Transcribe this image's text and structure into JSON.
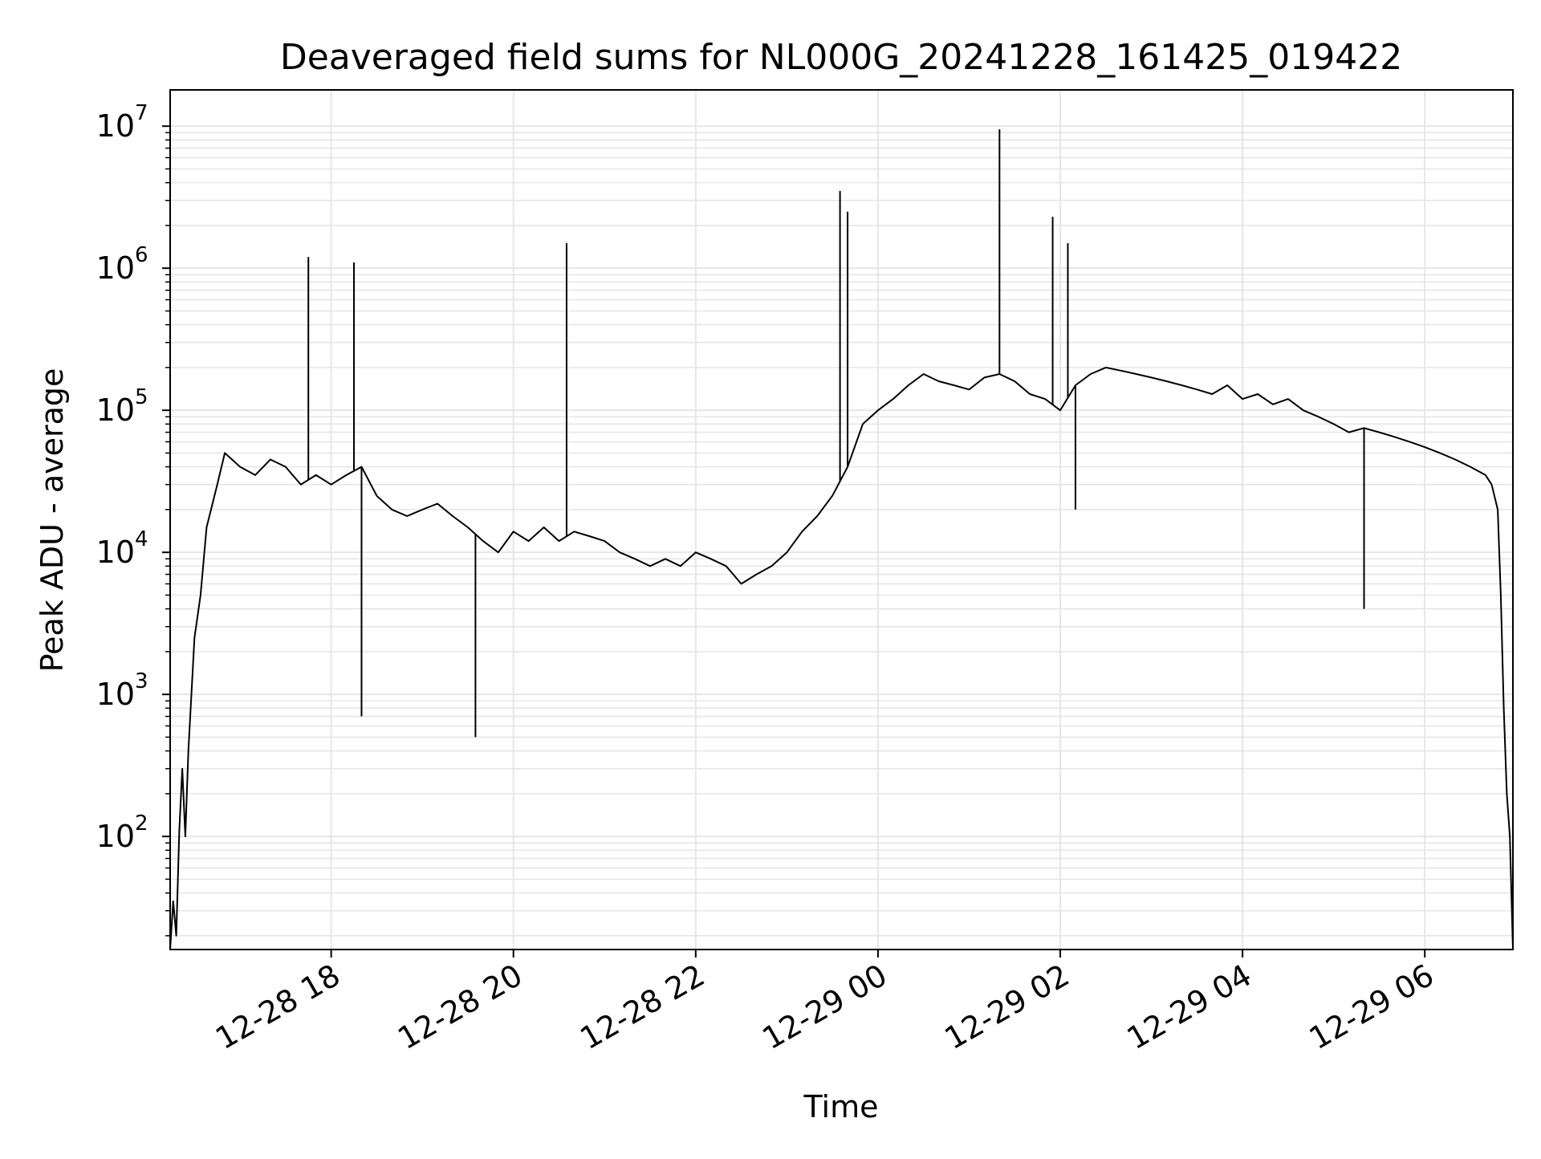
{
  "chart_data": {
    "type": "line",
    "title": "Deaveraged field sums for NL000G_20241228_161425_019422",
    "xlabel": "Time",
    "ylabel": "Peak ADU - average",
    "yscale": "log",
    "ylim": [
      16,
      18000000
    ],
    "xlim": [
      "2024-12-28T16:14",
      "2024-12-29T06:58"
    ],
    "grid": true,
    "line_color": "#000000",
    "grid_color": "#e6e6e6",
    "x_ticks": [
      {
        "value": "2024-12-28T18:00",
        "label": "12-28 18"
      },
      {
        "value": "2024-12-28T20:00",
        "label": "12-28 20"
      },
      {
        "value": "2024-12-28T22:00",
        "label": "12-28 22"
      },
      {
        "value": "2024-12-29T00:00",
        "label": "12-29 00"
      },
      {
        "value": "2024-12-29T02:00",
        "label": "12-29 02"
      },
      {
        "value": "2024-12-29T04:00",
        "label": "12-29 04"
      },
      {
        "value": "2024-12-29T06:00",
        "label": "12-29 06"
      }
    ],
    "y_ticks": [
      {
        "value": 100,
        "base": "10",
        "exp": "2"
      },
      {
        "value": 1000,
        "base": "10",
        "exp": "3"
      },
      {
        "value": 10000,
        "base": "10",
        "exp": "4"
      },
      {
        "value": 100000,
        "base": "10",
        "exp": "5"
      },
      {
        "value": 1000000,
        "base": "10",
        "exp": "6"
      },
      {
        "value": 10000000,
        "base": "10",
        "exp": "7"
      }
    ],
    "series": [
      {
        "name": "",
        "x": [
          "2024-12-28T16:14",
          "2024-12-28T16:16",
          "2024-12-28T16:18",
          "2024-12-28T16:20",
          "2024-12-28T16:22",
          "2024-12-28T16:24",
          "2024-12-28T16:26",
          "2024-12-28T16:28",
          "2024-12-28T16:30",
          "2024-12-28T16:34",
          "2024-12-28T16:38",
          "2024-12-28T16:45",
          "2024-12-28T16:50",
          "2024-12-28T17:00",
          "2024-12-28T17:10",
          "2024-12-28T17:20",
          "2024-12-28T17:30",
          "2024-12-28T17:40",
          "2024-12-28T17:50",
          "2024-12-28T18:00",
          "2024-12-28T18:10",
          "2024-12-28T18:20",
          "2024-12-28T18:30",
          "2024-12-28T18:40",
          "2024-12-28T18:50",
          "2024-12-28T19:00",
          "2024-12-28T19:10",
          "2024-12-28T19:20",
          "2024-12-28T19:30",
          "2024-12-28T19:40",
          "2024-12-28T19:50",
          "2024-12-28T20:00",
          "2024-12-28T20:10",
          "2024-12-28T20:20",
          "2024-12-28T20:30",
          "2024-12-28T20:40",
          "2024-12-28T20:50",
          "2024-12-28T21:00",
          "2024-12-28T21:10",
          "2024-12-28T21:20",
          "2024-12-28T21:30",
          "2024-12-28T21:40",
          "2024-12-28T21:50",
          "2024-12-28T22:00",
          "2024-12-28T22:10",
          "2024-12-28T22:20",
          "2024-12-28T22:30",
          "2024-12-28T22:40",
          "2024-12-28T22:50",
          "2024-12-28T23:00",
          "2024-12-28T23:10",
          "2024-12-28T23:20",
          "2024-12-28T23:30",
          "2024-12-28T23:40",
          "2024-12-28T23:50",
          "2024-12-29T00:00",
          "2024-12-29T00:10",
          "2024-12-29T00:20",
          "2024-12-29T00:30",
          "2024-12-29T00:40",
          "2024-12-29T00:50",
          "2024-12-29T01:00",
          "2024-12-29T01:10",
          "2024-12-29T01:20",
          "2024-12-29T01:30",
          "2024-12-29T01:40",
          "2024-12-29T01:50",
          "2024-12-29T02:00",
          "2024-12-29T02:10",
          "2024-12-29T02:20",
          "2024-12-29T02:30",
          "2024-12-29T02:40",
          "2024-12-29T02:50",
          "2024-12-29T03:00",
          "2024-12-29T03:10",
          "2024-12-29T03:20",
          "2024-12-29T03:30",
          "2024-12-29T03:40",
          "2024-12-29T03:50",
          "2024-12-29T04:00",
          "2024-12-29T04:10",
          "2024-12-29T04:20",
          "2024-12-29T04:30",
          "2024-12-29T04:40",
          "2024-12-29T04:50",
          "2024-12-29T05:00",
          "2024-12-29T05:10",
          "2024-12-29T05:20",
          "2024-12-29T05:30",
          "2024-12-29T05:40",
          "2024-12-29T05:50",
          "2024-12-29T06:00",
          "2024-12-29T06:10",
          "2024-12-29T06:20",
          "2024-12-29T06:30",
          "2024-12-29T06:40",
          "2024-12-29T06:44",
          "2024-12-29T06:48",
          "2024-12-29T06:50",
          "2024-12-29T06:52",
          "2024-12-29T06:54",
          "2024-12-29T06:56",
          "2024-12-29T06:58"
        ],
        "y": [
          16,
          35,
          20,
          110,
          300,
          100,
          400,
          1000,
          2500,
          5000,
          15000,
          30000,
          50000,
          40000,
          35000,
          45000,
          40000,
          30000,
          35000,
          30000,
          35000,
          40000,
          25000,
          20000,
          18000,
          20000,
          22000,
          18000,
          15000,
          12000,
          10000,
          14000,
          12000,
          15000,
          12000,
          14000,
          13000,
          12000,
          10000,
          9000,
          8000,
          9000,
          8000,
          10000,
          9000,
          8000,
          6000,
          7000,
          8000,
          10000,
          14000,
          18000,
          25000,
          40000,
          80000,
          100000,
          120000,
          150000,
          180000,
          160000,
          150000,
          140000,
          170000,
          180000,
          160000,
          130000,
          120000,
          100000,
          150000,
          180000,
          200000,
          190000,
          180000,
          170000,
          160000,
          150000,
          140000,
          130000,
          150000,
          120000,
          130000,
          110000,
          120000,
          100000,
          90000,
          80000,
          70000,
          75000,
          70000,
          65000,
          60000,
          55000,
          50000,
          45000,
          40000,
          35000,
          30000,
          20000,
          5000,
          800,
          200,
          100,
          16
        ]
      }
    ],
    "spikes": [
      {
        "x": "2024-12-28T17:45",
        "y": 1200000
      },
      {
        "x": "2024-12-28T18:15",
        "y": 1100000
      },
      {
        "x": "2024-12-28T18:20",
        "y": 700
      },
      {
        "x": "2024-12-28T19:35",
        "y": 500
      },
      {
        "x": "2024-12-28T20:35",
        "y": 1500000
      },
      {
        "x": "2024-12-28T23:35",
        "y": 3500000
      },
      {
        "x": "2024-12-28T23:40",
        "y": 2500000
      },
      {
        "x": "2024-12-29T01:20",
        "y": 9500000
      },
      {
        "x": "2024-12-29T01:55",
        "y": 2300000
      },
      {
        "x": "2024-12-29T02:05",
        "y": 1500000
      },
      {
        "x": "2024-12-29T02:10",
        "y": 20000
      },
      {
        "x": "2024-12-29T05:20",
        "y": 4000
      }
    ]
  }
}
